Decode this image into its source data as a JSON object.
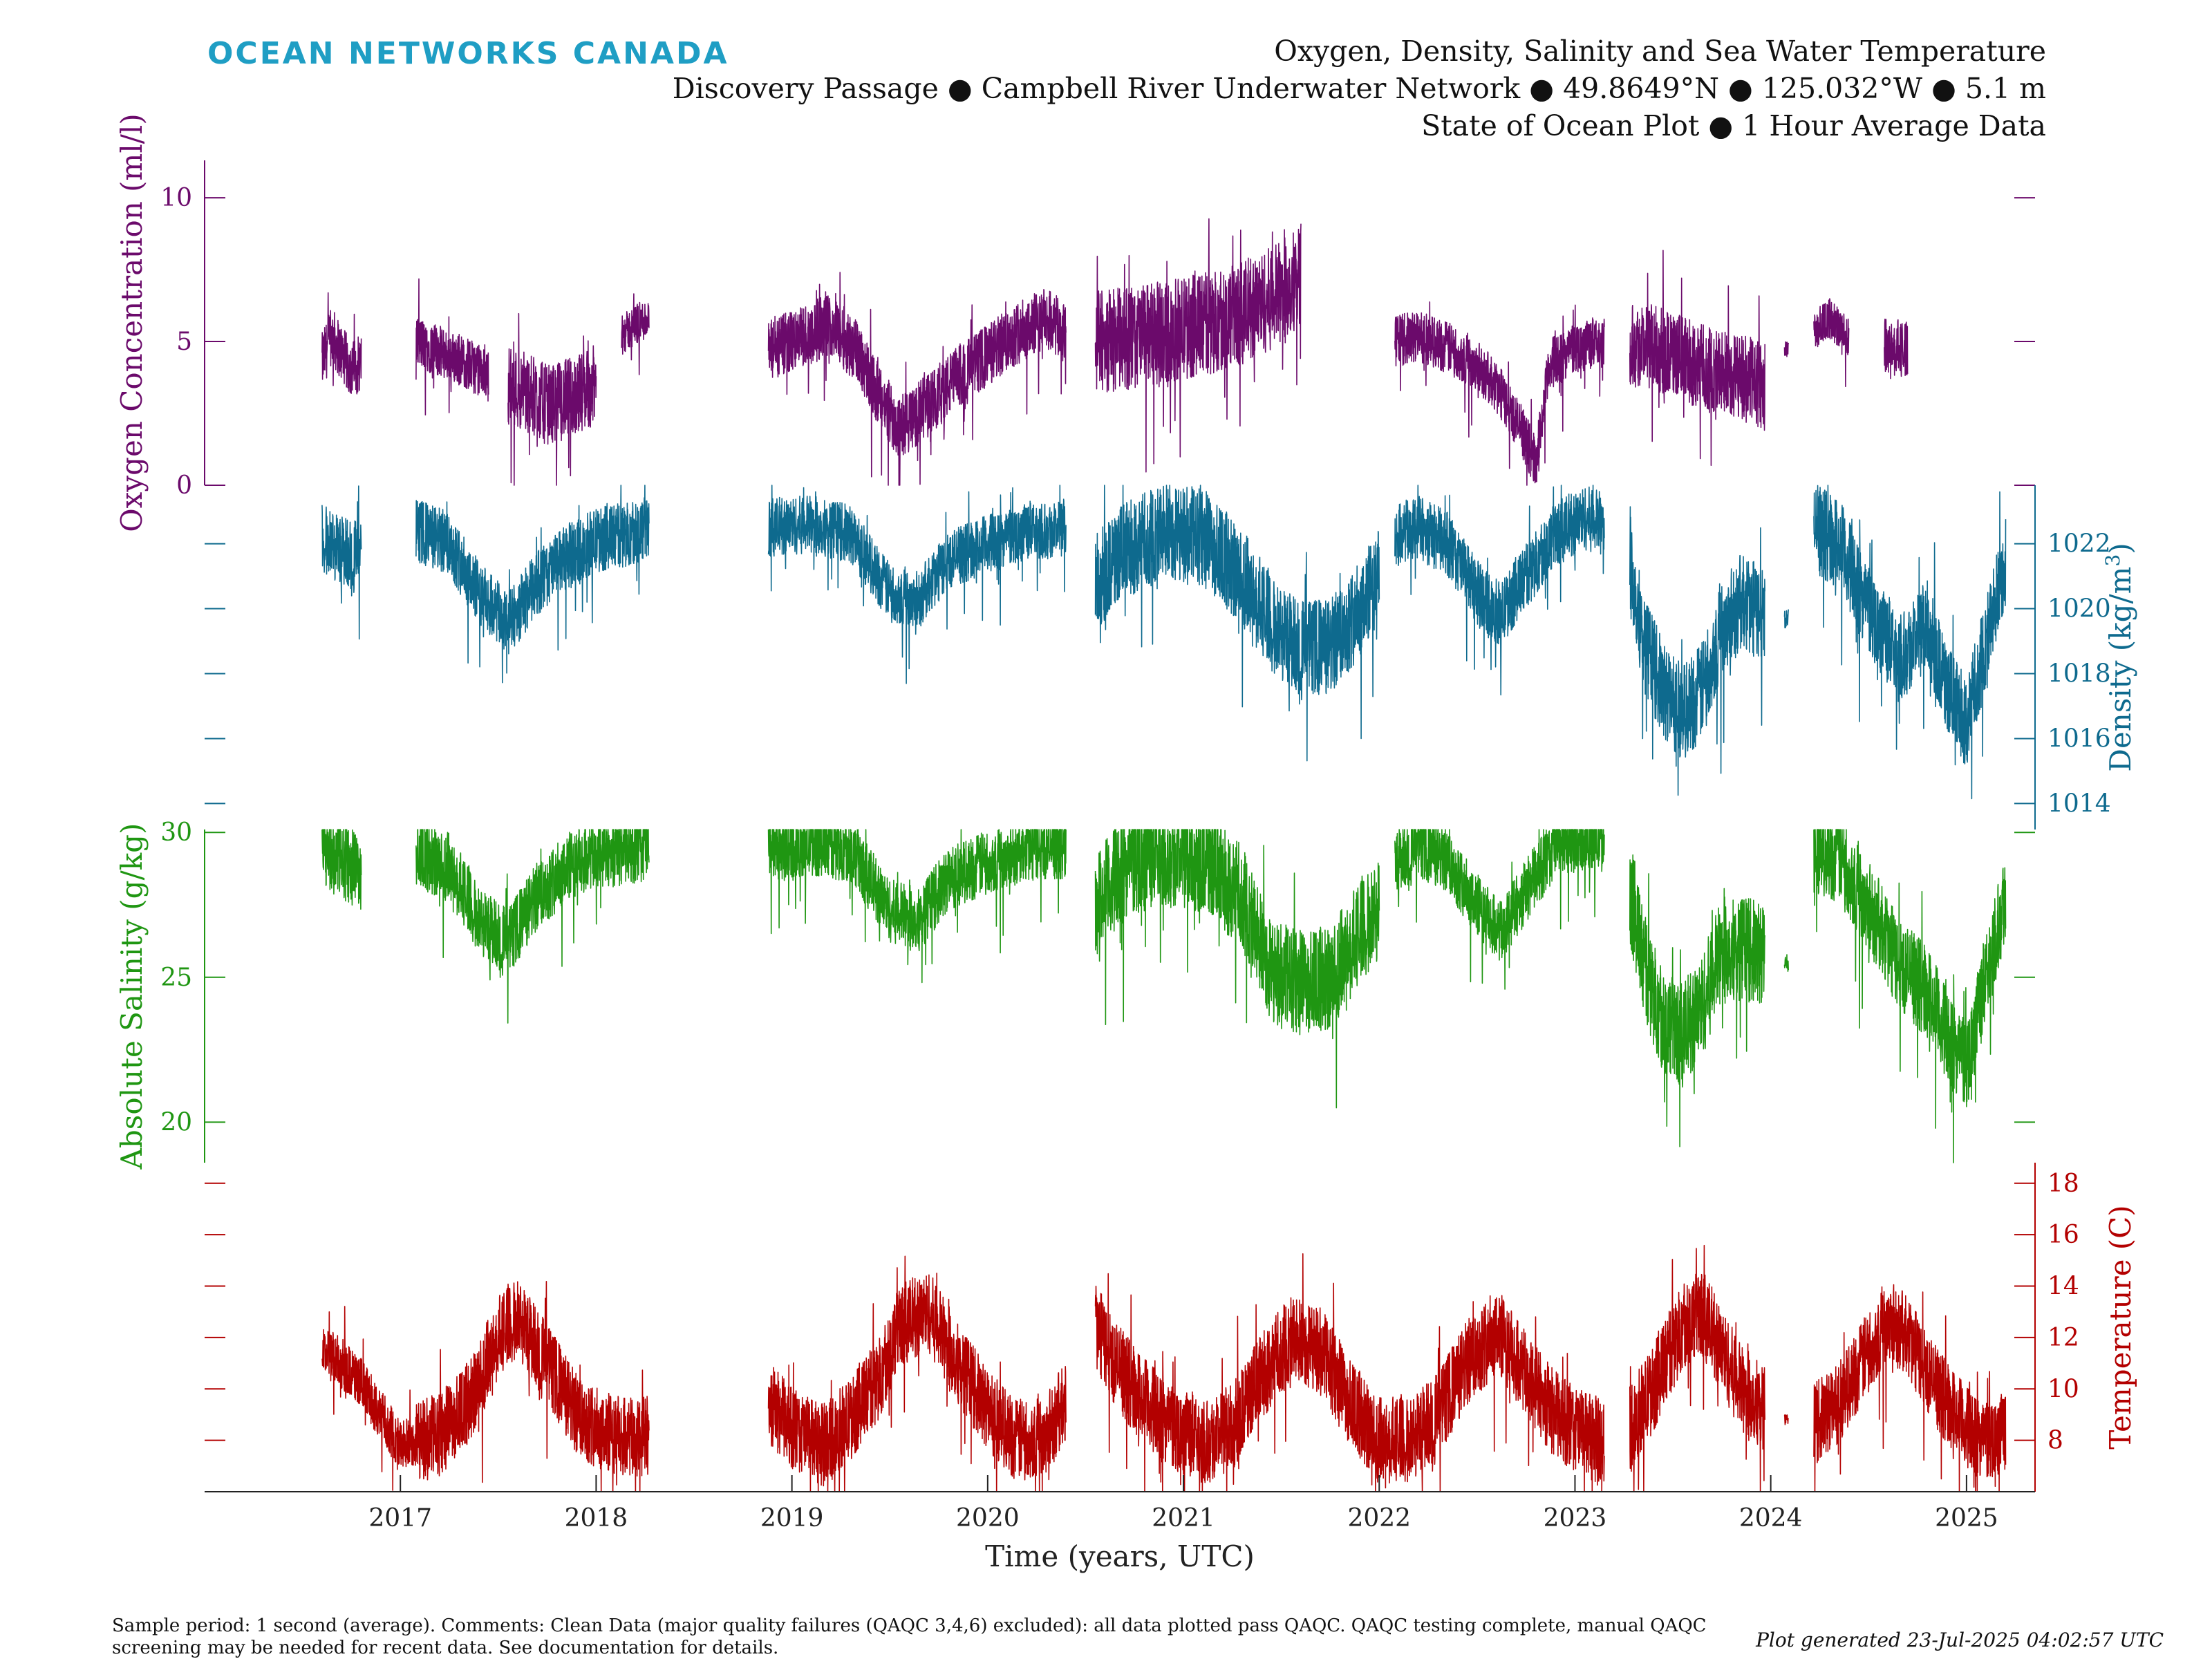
{
  "brand": {
    "logo_text": "OCEAN NETWORKS CANADA"
  },
  "header": {
    "title": "Oxygen, Density, Salinity and Sea Water Temperature",
    "subtitle": "Discovery Passage ● Campbell River Underwater Network ● 49.8649°N ● 125.032°W ● 5.1 m",
    "subtitle2": "State of Ocean Plot ● 1 Hour Average Data"
  },
  "footer": {
    "note": "Sample period: 1 second (average). Comments: Clean Data (major quality failures (QAQC 3,4,6) excluded): all data plotted pass QAQC. QAQC testing complete, manual QAQC screening may be needed for recent data. See documentation for details.",
    "generated": "Plot generated 23-Jul-2025 04:02:57 UTC"
  },
  "colors": {
    "oxygen": "#6b0a6b",
    "density": "#0e6a8e",
    "salinity": "#1f9612",
    "temperature": "#b30000",
    "logo": "#1f9ec4",
    "axis": "#222222"
  },
  "chart_data": {
    "type": "line",
    "xlabel": "Time (years, UTC)",
    "xlim": [
      2016.0,
      2025.35
    ],
    "x_ticks": [
      2017,
      2018,
      2019,
      2020,
      2021,
      2022,
      2023,
      2024,
      2025
    ],
    "panels": [
      {
        "name": "Oxygen Concentration (ml/l)",
        "ylabel": "Oxygen Concentration (ml/l)",
        "side": "left",
        "color": "#6b0a6b",
        "ylim": [
          0,
          11.3
        ],
        "ticks": [
          0,
          5,
          10
        ],
        "segments": [
          {
            "x": [
              2016.6,
              2016.65,
              2016.7,
              2016.75,
              2016.8
            ],
            "y": [
              4.3,
              5.2,
              4.6,
              4.0,
              4.3
            ],
            "amp": 1.0
          },
          {
            "x": [
              2017.08,
              2017.15,
              2017.25,
              2017.35,
              2017.45
            ],
            "y": [
              5.0,
              4.8,
              4.5,
              4.2,
              3.8
            ],
            "amp": 0.9
          },
          {
            "x": [
              2017.55,
              2017.65,
              2017.75,
              2017.85,
              2018.0
            ],
            "y": [
              3.5,
              3.2,
              2.8,
              3.0,
              3.5
            ],
            "amp": 1.4
          },
          {
            "x": [
              2018.13,
              2018.2,
              2018.27
            ],
            "y": [
              5.2,
              5.6,
              5.8
            ],
            "amp": 0.7
          },
          {
            "x": [
              2018.88,
              2019.0,
              2019.2,
              2019.35,
              2019.45,
              2019.55,
              2019.7,
              2019.85,
              2020.0,
              2020.15,
              2020.3,
              2020.4
            ],
            "y": [
              4.6,
              5.0,
              5.6,
              4.5,
              3.0,
              2.0,
              2.8,
              3.8,
              4.5,
              5.3,
              5.8,
              5.2
            ],
            "amp": 1.1
          },
          {
            "x": [
              2020.55,
              2020.7,
              2020.9,
              2021.1,
              2021.3,
              2021.45,
              2021.55,
              2021.6
            ],
            "y": [
              5.0,
              5.1,
              5.3,
              5.6,
              6.0,
              6.5,
              7.0,
              7.5
            ],
            "amp": 1.8
          },
          {
            "x": [
              2022.08,
              2022.2,
              2022.35,
              2022.5,
              2022.62,
              2022.72,
              2022.8,
              2022.87,
              2023.0,
              2023.15
            ],
            "y": [
              5.0,
              5.2,
              4.8,
              4.2,
              3.2,
              2.0,
              0.8,
              4.2,
              4.8,
              5.0
            ],
            "amp": 0.9
          },
          {
            "x": [
              2023.28,
              2023.4,
              2023.55,
              2023.7,
              2023.85,
              2023.97
            ],
            "y": [
              5.0,
              4.8,
              4.4,
              4.0,
              3.8,
              3.4
            ],
            "amp": 1.5
          },
          {
            "x": [
              2024.07,
              2024.09
            ],
            "y": [
              4.7,
              4.7
            ],
            "amp": 0.3
          },
          {
            "x": [
              2024.22,
              2024.3,
              2024.4
            ],
            "y": [
              5.4,
              5.8,
              5.2
            ],
            "amp": 0.7
          },
          {
            "x": [
              2024.58,
              2024.64,
              2024.7
            ],
            "y": [
              4.8,
              4.8,
              4.6
            ],
            "amp": 1.0
          }
        ]
      },
      {
        "name": "Density (kg/m³)",
        "ylabel_main": "Density (kg/m",
        "ylabel_sup": "3",
        "ylabel_end": ")",
        "side": "right",
        "color": "#0e6a8e",
        "ylim": [
          1013.2,
          1023.8
        ],
        "ticks": [
          1014,
          1016,
          1018,
          1020,
          1022
        ],
        "segments": [
          {
            "x": [
              2016.6,
              2016.7,
              2016.8
            ],
            "y": [
              1022.2,
              1021.8,
              1021.6
            ],
            "amp": 1.1
          },
          {
            "x": [
              2017.08,
              2017.25,
              2017.4,
              2017.55,
              2017.7,
              2017.85,
              2018.0,
              2018.15,
              2018.27
            ],
            "y": [
              1022.4,
              1022.0,
              1020.5,
              1019.5,
              1020.8,
              1021.6,
              1022.1,
              1022.3,
              1022.5
            ],
            "amp": 1.0
          },
          {
            "x": [
              2018.88,
              2019.1,
              2019.3,
              2019.5,
              2019.65,
              2019.8,
              2020.0,
              2020.2,
              2020.4
            ],
            "y": [
              1022.5,
              1022.6,
              1022.3,
              1020.5,
              1020.3,
              1021.5,
              1022.0,
              1022.4,
              1022.5
            ],
            "amp": 0.9
          },
          {
            "x": [
              2020.55,
              2020.7,
              2020.9,
              2021.1,
              2021.3,
              2021.45,
              2021.6,
              2021.75,
              2021.9,
              2022.0
            ],
            "y": [
              1020.8,
              1021.8,
              1022.4,
              1022.2,
              1021.0,
              1019.5,
              1018.8,
              1018.8,
              1020.0,
              1021.0
            ],
            "amp": 1.5
          },
          {
            "x": [
              2022.08,
              2022.2,
              2022.35,
              2022.5,
              2022.62,
              2022.75,
              2022.9,
              2023.05,
              2023.15
            ],
            "y": [
              1022.2,
              1022.5,
              1022.0,
              1020.5,
              1019.8,
              1021.0,
              1022.3,
              1022.8,
              1022.6
            ],
            "amp": 1.0
          },
          {
            "x": [
              2023.28,
              2023.35,
              2023.45,
              2023.55,
              2023.65,
              2023.75,
              2023.85,
              2023.97
            ],
            "y": [
              1021.5,
              1019.0,
              1017.5,
              1016.8,
              1017.5,
              1019.5,
              1020.2,
              1019.8
            ],
            "amp": 1.5
          },
          {
            "x": [
              2024.07,
              2024.09
            ],
            "y": [
              1019.7,
              1019.7
            ],
            "amp": 0.3
          },
          {
            "x": [
              2024.22,
              2024.35,
              2024.5,
              2024.65,
              2024.8,
              2024.9,
              2025.0,
              2025.1,
              2025.2
            ],
            "y": [
              1022.5,
              1022.0,
              1020.0,
              1018.5,
              1019.5,
              1017.5,
              1016.5,
              1019.0,
              1021.5
            ],
            "amp": 1.4
          }
        ]
      },
      {
        "name": "Absolute Salinity (g/kg)",
        "ylabel": "Absolute Salinity (g/kg)",
        "side": "left",
        "color": "#1f9612",
        "ylim": [
          18.6,
          30.1
        ],
        "ticks": [
          20,
          25,
          30
        ],
        "segments": [
          {
            "x": [
              2016.6,
              2016.7,
              2016.8
            ],
            "y": [
              29.5,
              29.0,
              28.6
            ],
            "amp": 1.3
          },
          {
            "x": [
              2017.08,
              2017.25,
              2017.4,
              2017.55,
              2017.7,
              2017.85,
              2018.0,
              2018.15,
              2018.27
            ],
            "y": [
              29.3,
              28.8,
              27.0,
              26.2,
              27.8,
              28.8,
              29.2,
              29.4,
              29.5
            ],
            "amp": 1.2
          },
          {
            "x": [
              2018.88,
              2019.1,
              2019.3,
              2019.5,
              2019.65,
              2019.8,
              2020.0,
              2020.2,
              2020.4
            ],
            "y": [
              29.4,
              29.6,
              29.4,
              27.3,
              27.0,
              28.4,
              29.0,
              29.4,
              29.5
            ],
            "amp": 1.1
          },
          {
            "x": [
              2020.55,
              2020.7,
              2020.9,
              2021.1,
              2021.3,
              2021.45,
              2021.6,
              2021.75,
              2021.9,
              2022.0
            ],
            "y": [
              27.5,
              28.8,
              29.3,
              29.0,
              27.8,
              25.2,
              24.8,
              25.0,
              26.5,
              27.4
            ],
            "amp": 1.8
          },
          {
            "x": [
              2022.08,
              2022.2,
              2022.35,
              2022.5,
              2022.62,
              2022.75,
              2022.9,
              2023.05,
              2023.15
            ],
            "y": [
              29.0,
              29.5,
              29.0,
              27.5,
              26.5,
              28.0,
              29.5,
              29.9,
              29.7
            ],
            "amp": 1.1
          },
          {
            "x": [
              2023.28,
              2023.35,
              2023.45,
              2023.55,
              2023.65,
              2023.75,
              2023.85,
              2023.97
            ],
            "y": [
              28.0,
              25.5,
              23.5,
              23.0,
              24.0,
              26.0,
              26.0,
              25.8
            ],
            "amp": 1.8
          },
          {
            "x": [
              2024.07,
              2024.09
            ],
            "y": [
              25.5,
              25.5
            ],
            "amp": 0.3
          },
          {
            "x": [
              2024.22,
              2024.35,
              2024.5,
              2024.65,
              2024.8,
              2024.9,
              2025.0,
              2025.1,
              2025.2
            ],
            "y": [
              29.5,
              29.2,
              27.5,
              25.5,
              24.5,
              23.0,
              22.0,
              25.0,
              28.0
            ],
            "amp": 1.6
          }
        ]
      },
      {
        "name": "Temperature (C)",
        "ylabel": "Temperature (C)",
        "side": "right",
        "color": "#b30000",
        "ylim": [
          6.0,
          18.8
        ],
        "ticks": [
          8,
          10,
          12,
          14,
          16,
          18
        ],
        "segments": [
          {
            "x": [
              2016.6,
              2016.7,
              2016.8,
              2016.9,
              2017.0,
              2017.08
            ],
            "y": [
              11.5,
              11.0,
              10.2,
              9.0,
              7.8,
              8.0
            ],
            "amp": 1.0
          },
          {
            "x": [
              2017.08,
              2017.2,
              2017.35,
              2017.5,
              2017.6,
              2017.75,
              2017.9,
              2018.05,
              2018.2,
              2018.27
            ],
            "y": [
              8.0,
              8.2,
              9.5,
              12.0,
              12.8,
              11.0,
              9.0,
              8.3,
              8.0,
              8.2
            ],
            "amp": 1.6
          },
          {
            "x": [
              2018.88,
              2019.0,
              2019.15,
              2019.3,
              2019.45,
              2019.55,
              2019.7,
              2019.85,
              2020.0,
              2020.15,
              2020.3,
              2020.4
            ],
            "y": [
              9.5,
              8.5,
              7.8,
              8.8,
              10.5,
              12.5,
              13.0,
              11.0,
              9.2,
              8.0,
              8.3,
              9.5
            ],
            "amp": 1.6
          },
          {
            "x": [
              2020.55,
              2020.65,
              2020.8,
              2020.95,
              2021.1,
              2021.25,
              2021.4,
              2021.55,
              2021.7,
              2021.85,
              2022.0,
              2022.15,
              2022.3,
              2022.45,
              2022.6,
              2022.75,
              2022.9,
              2023.05,
              2023.15
            ],
            "y": [
              12.5,
              11.0,
              9.5,
              8.5,
              8.0,
              8.5,
              10.5,
              12.0,
              11.5,
              9.5,
              8.0,
              8.0,
              9.0,
              11.0,
              12.3,
              10.5,
              9.0,
              8.2,
              7.9
            ],
            "amp": 1.7
          },
          {
            "x": [
              2023.28,
              2023.4,
              2023.55,
              2023.65,
              2023.75,
              2023.85,
              2023.97
            ],
            "y": [
              8.5,
              10.0,
              12.5,
              13.0,
              11.5,
              10.0,
              9.3
            ],
            "amp": 1.7
          },
          {
            "x": [
              2024.07,
              2024.09
            ],
            "y": [
              8.8,
              8.8
            ],
            "amp": 0.2
          },
          {
            "x": [
              2024.22,
              2024.35,
              2024.5,
              2024.6,
              2024.7,
              2024.85,
              2025.0,
              2025.1,
              2025.2
            ],
            "y": [
              8.6,
              9.5,
              11.5,
              12.8,
              12.0,
              10.0,
              8.5,
              8.0,
              8.4
            ],
            "amp": 1.6
          }
        ]
      }
    ]
  }
}
